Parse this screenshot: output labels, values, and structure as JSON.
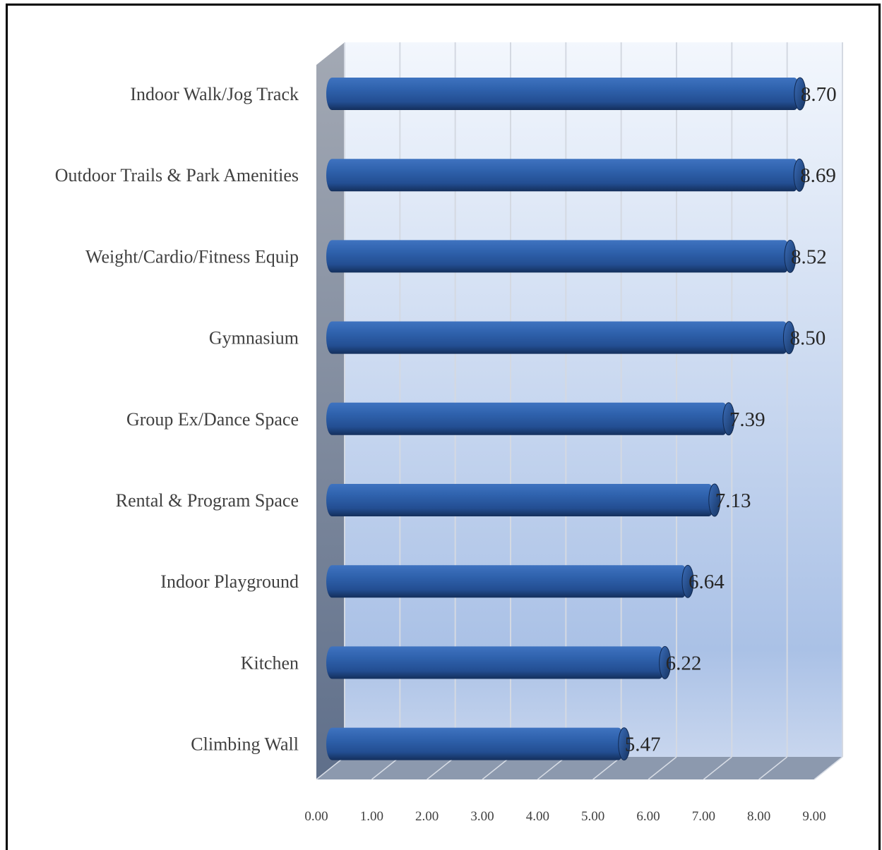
{
  "chart_data": {
    "type": "bar",
    "orientation": "horizontal",
    "style": "3d-cylinder",
    "categories": [
      "Indoor Walk/Jog Track",
      "Outdoor Trails & Park Amenities",
      "Weight/Cardio/Fitness Equip",
      "Gymnasium",
      "Group Ex/Dance Space",
      "Rental & Program Space",
      "Indoor Playground",
      "Kitchen",
      "Climbing Wall"
    ],
    "values": [
      8.7,
      8.69,
      8.52,
      8.5,
      7.39,
      7.13,
      6.64,
      6.22,
      5.47
    ],
    "data_labels": [
      "8.70",
      "8.69",
      "8.52",
      "8.50",
      "7.39",
      "7.13",
      "6.64",
      "6.22",
      "5.47"
    ],
    "xticks": [
      "0.00",
      "1.00",
      "2.00",
      "3.00",
      "4.00",
      "5.00",
      "6.00",
      "7.00",
      "8.00",
      "9.00"
    ],
    "xlim": [
      0,
      9
    ],
    "grid": true,
    "legend": "none",
    "colors": {
      "bar": "#2a5aa3",
      "bar_dark": "#173a70",
      "wall_top": "#f2f6fc",
      "wall_bottom": "#a9c0e6",
      "side_wall": "#6f7c92",
      "floor": "#8c99ae",
      "grid": "#d4d9e2"
    }
  }
}
